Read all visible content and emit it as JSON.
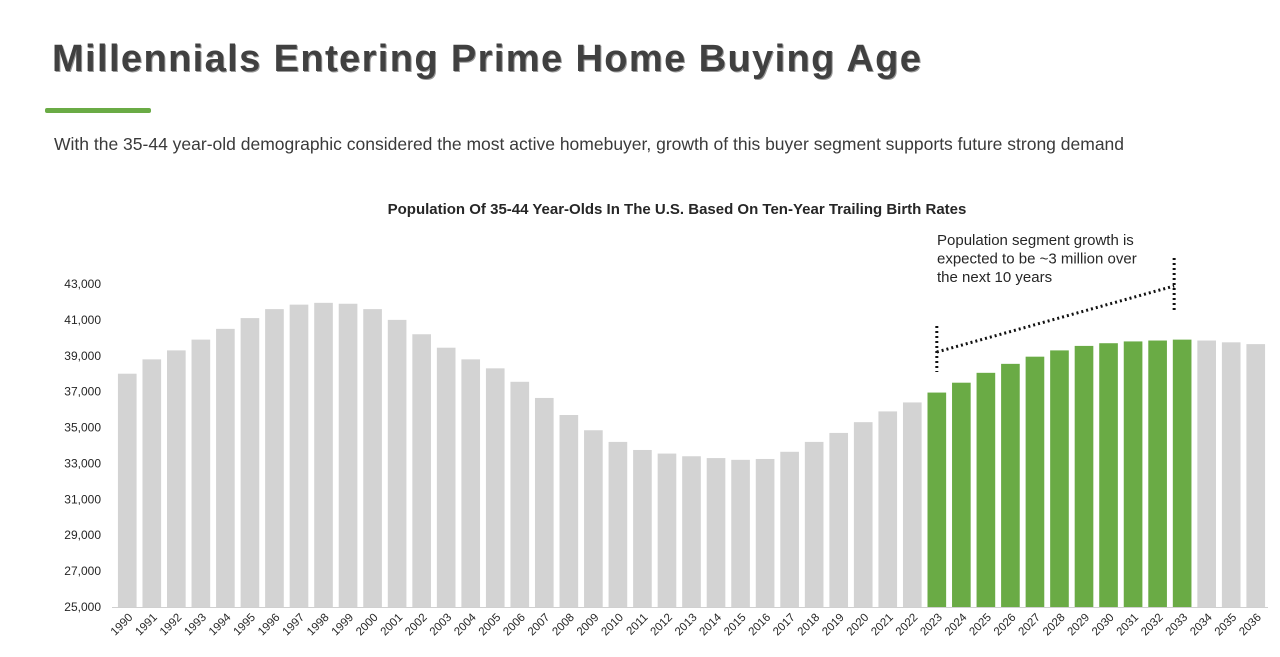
{
  "header": {
    "title": "Millennials Entering Prime Home Buying Age",
    "subtitle": "With the 35-44 year-old demographic considered the most active homebuyer, growth of this buyer segment supports future strong demand"
  },
  "colors": {
    "accent": "#6aab45",
    "bar_default": "#d3d3d3",
    "bar_highlight": "#6aab45"
  },
  "chart_data": {
    "type": "bar",
    "title": "Population Of 35-44 Year-Olds In The U.S. Based On Ten-Year Trailing Birth Rates",
    "xlabel": "",
    "ylabel": "",
    "ylim": [
      25000,
      43000
    ],
    "yticks": [
      "25,000",
      "27,000",
      "29,000",
      "31,000",
      "33,000",
      "35,000",
      "37,000",
      "39,000",
      "41,000",
      "43,000"
    ],
    "grid": false,
    "categories": [
      "1990",
      "1991",
      "1992",
      "1993",
      "1994",
      "1995",
      "1996",
      "1997",
      "1998",
      "1999",
      "2000",
      "2001",
      "2002",
      "2003",
      "2004",
      "2005",
      "2006",
      "2007",
      "2008",
      "2009",
      "2010",
      "2011",
      "2012",
      "2013",
      "2014",
      "2015",
      "2016",
      "2017",
      "2018",
      "2019",
      "2020",
      "2021",
      "2022",
      "2023",
      "2024",
      "2025",
      "2026",
      "2027",
      "2028",
      "2029",
      "2030",
      "2031",
      "2032",
      "2033",
      "2034",
      "2035",
      "2036"
    ],
    "values": [
      38000,
      38800,
      39300,
      39900,
      40500,
      41100,
      41600,
      41850,
      41950,
      41900,
      41600,
      41000,
      40200,
      39450,
      38800,
      38300,
      37550,
      36650,
      35700,
      34850,
      34200,
      33750,
      33550,
      33400,
      33300,
      33200,
      33250,
      33650,
      34200,
      34700,
      35300,
      35900,
      36400,
      36950,
      37500,
      38050,
      38550,
      38950,
      39300,
      39550,
      39700,
      39800,
      39850,
      39900,
      39850,
      39750,
      39650
    ],
    "highlight_range": [
      "2023",
      "2033"
    ],
    "annotation": {
      "lines": [
        "Population segment growth is",
        "expected to be ~3 million over",
        "the next 10 years"
      ],
      "from_year": "2023",
      "to_year": "2033"
    }
  }
}
